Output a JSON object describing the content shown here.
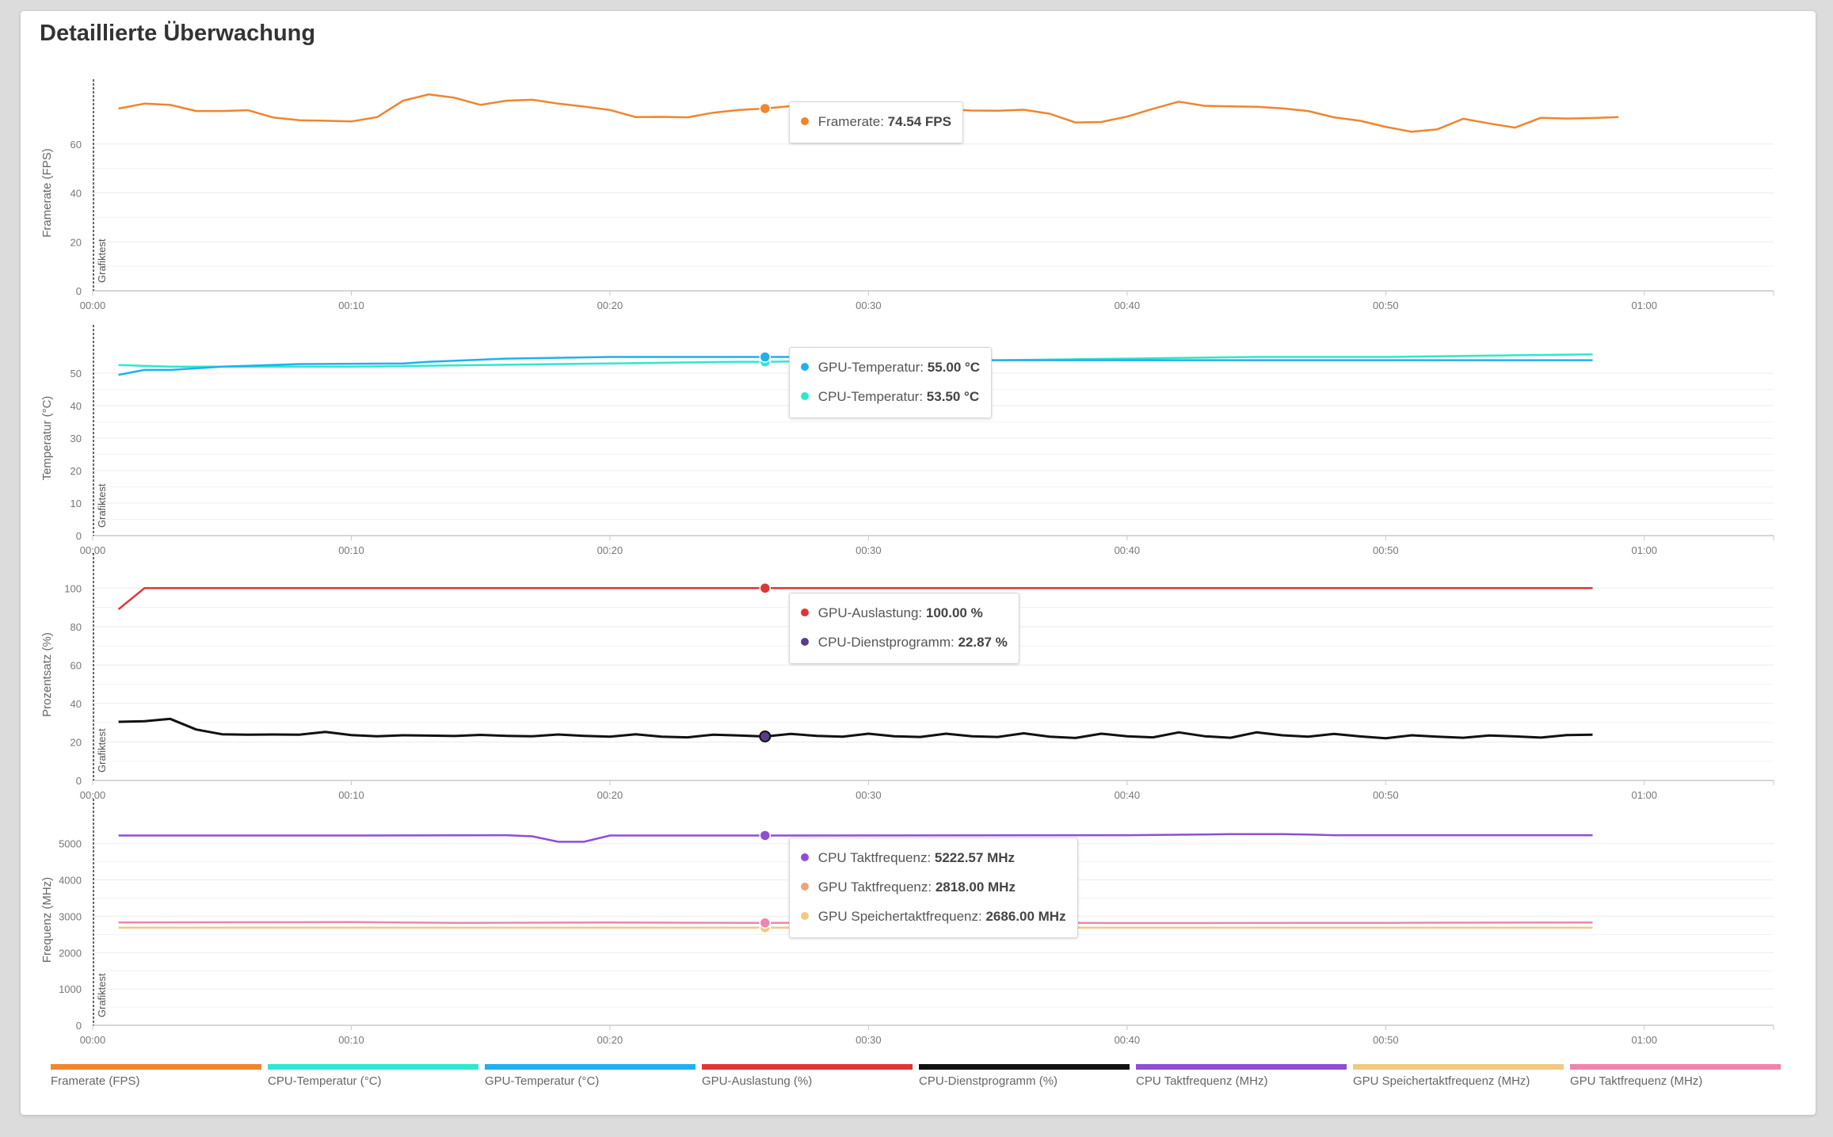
{
  "title": "Detaillierte Überwachung",
  "chart_data": [
    {
      "type": "line",
      "ylabel": "Framerate (FPS)",
      "marker_label": "Grafiktest",
      "ylim": [
        0,
        80
      ],
      "yticks": [
        0,
        20,
        40,
        60
      ],
      "xlim": [
        0,
        65
      ],
      "x_tick_labels": [
        "00:00",
        "00:10",
        "00:20",
        "00:30",
        "00:40",
        "00:50",
        "01:00"
      ],
      "series": [
        {
          "name": "Framerate (FPS)",
          "color": "#f0852d",
          "x": [
            1,
            2,
            3,
            4,
            5,
            6,
            7,
            8,
            9,
            10,
            11,
            12,
            13,
            14,
            15,
            16,
            17,
            18,
            19,
            20,
            21,
            22,
            23,
            24,
            25,
            26,
            27,
            28,
            29,
            30,
            31,
            32,
            33,
            34,
            35,
            36,
            37,
            38,
            39,
            40,
            41,
            42,
            43,
            44,
            45,
            46,
            47,
            48,
            49,
            50,
            51,
            52,
            53,
            54,
            55,
            56,
            57,
            58,
            59
          ],
          "values": [
            74.5,
            76.5,
            76,
            73.5,
            73.5,
            73.8,
            70.8,
            69.7,
            69.5,
            69.2,
            71,
            77.7,
            80.3,
            78.9,
            76,
            77.7,
            78.1,
            76.5,
            75.3,
            73.9,
            71,
            71.1,
            70.9,
            72.8,
            73.9,
            74.5,
            75.5,
            75.6,
            75,
            74.5,
            74.2,
            74.2,
            74.2,
            73.7,
            73.6,
            74,
            72.4,
            68.8,
            69,
            71.2,
            74.4,
            77.3,
            75.6,
            75.4,
            75.2,
            74.6,
            73.5,
            70.9,
            69.5,
            67,
            65,
            66,
            70.3,
            68.4,
            66.7,
            70.7,
            70.4,
            70.6,
            71
          ]
        }
      ],
      "tooltip": {
        "x": 26,
        "rows": [
          {
            "color": "#f0852d",
            "label": "Framerate:",
            "value": "74.54 FPS"
          }
        ]
      }
    },
    {
      "type": "line",
      "ylabel": "Temperatur (°C)",
      "marker_label": "Grafiktest",
      "ylim": [
        0,
        60
      ],
      "yticks": [
        0,
        10,
        20,
        30,
        40,
        50
      ],
      "xlim": [
        0,
        65
      ],
      "x_tick_labels": [
        "00:00",
        "00:10",
        "00:20",
        "00:30",
        "00:40",
        "00:50",
        "01:00"
      ],
      "series": [
        {
          "name": "CPU-Temperatur (°C)",
          "color": "#2ee8cd",
          "x": [
            1,
            3,
            6,
            10,
            15,
            20,
            25,
            26,
            30,
            35,
            40,
            45,
            50,
            55,
            58
          ],
          "values": [
            52.5,
            52,
            52,
            52,
            52.5,
            53,
            53.5,
            53.5,
            54,
            54,
            54.5,
            55,
            55,
            55.5,
            55.8
          ]
        },
        {
          "name": "GPU-Temperatur (°C)",
          "color": "#1fb1ef",
          "x": [
            1,
            2,
            3,
            5,
            8,
            12,
            13,
            16,
            20,
            26,
            30,
            33,
            34,
            40,
            50,
            58
          ],
          "values": [
            49.5,
            51,
            51,
            52,
            52.8,
            53,
            53.5,
            54.5,
            55,
            55,
            55,
            55,
            54,
            54,
            54,
            54
          ]
        }
      ],
      "tooltip": {
        "x": 26,
        "rows": [
          {
            "color": "#1fb1ef",
            "label": "GPU-Temperatur:",
            "value": "55.00 °C"
          },
          {
            "color": "#2ee8cd",
            "label": "CPU-Temperatur:",
            "value": "53.50 °C"
          }
        ]
      }
    },
    {
      "type": "line",
      "ylabel": "Prozentsatz (%)",
      "marker_label": "Grafiktest",
      "ylim": [
        0,
        110
      ],
      "yticks": [
        0,
        20,
        40,
        60,
        80,
        100
      ],
      "xlim": [
        0,
        65
      ],
      "x_tick_labels": [
        "00:00",
        "00:10",
        "00:20",
        "00:30",
        "00:40",
        "00:50",
        "01:00"
      ],
      "series": [
        {
          "name": "GPU-Auslastung (%)",
          "color": "#e03636",
          "x": [
            1,
            2,
            26,
            58
          ],
          "values": [
            89,
            100,
            100,
            100
          ]
        },
        {
          "name": "CPU-Dienstprogramm (%)",
          "color": "#111111",
          "x": [
            1,
            2,
            3,
            4,
            5,
            6,
            7,
            8,
            9,
            10,
            11,
            12,
            13,
            14,
            15,
            16,
            17,
            18,
            19,
            20,
            21,
            22,
            23,
            24,
            25,
            26,
            27,
            28,
            29,
            30,
            31,
            32,
            33,
            34,
            35,
            36,
            37,
            38,
            39,
            40,
            41,
            42,
            43,
            44,
            45,
            46,
            47,
            48,
            49,
            50,
            51,
            52,
            53,
            54,
            55,
            56,
            57,
            58
          ],
          "values": [
            30.5,
            30.8,
            32,
            26.5,
            24,
            23.8,
            23.9,
            23.8,
            25.2,
            23.6,
            23,
            23.5,
            23.3,
            23.1,
            23.7,
            23.2,
            23,
            23.9,
            23.2,
            22.8,
            24,
            22.8,
            22.4,
            23.8,
            23.4,
            22.87,
            24.2,
            23.2,
            22.8,
            24.3,
            23,
            22.6,
            24.3,
            23,
            22.6,
            24.5,
            22.8,
            22.1,
            24.3,
            23,
            22.4,
            25,
            23,
            22.2,
            25,
            23.5,
            22.8,
            24.2,
            22.9,
            21.9,
            23.5,
            22.8,
            22.2,
            23.4,
            22.9,
            22.3,
            23.6,
            23.8
          ]
        }
      ],
      "tooltip": {
        "x": 26,
        "rows": [
          {
            "color": "#e03636",
            "label": "GPU-Auslastung:",
            "value": "100.00 %"
          },
          {
            "color": "#5a3d8a",
            "label": "CPU-Dienstprogramm:",
            "value": "22.87 %"
          }
        ]
      }
    },
    {
      "type": "line",
      "ylabel": "Frequenz (MHz)",
      "marker_label": "Grafiktest",
      "ylim": [
        0,
        5800
      ],
      "yticks": [
        0,
        1000,
        2000,
        3000,
        4000,
        5000
      ],
      "xlim": [
        0,
        65
      ],
      "x_tick_labels": [
        "00:00",
        "00:10",
        "00:20",
        "00:30",
        "00:40",
        "00:50",
        "01:00"
      ],
      "series": [
        {
          "name": "CPU Taktfrequenz (MHz)",
          "color": "#8e4fd6",
          "x": [
            1,
            10,
            16,
            17,
            18,
            19,
            20,
            26,
            40,
            44,
            46,
            47,
            48,
            58
          ],
          "values": [
            5222,
            5222,
            5230,
            5200,
            5050,
            5050,
            5222,
            5222.57,
            5230,
            5260,
            5260,
            5250,
            5230,
            5230
          ]
        },
        {
          "name": "GPU Speichertaktfrequenz (MHz)",
          "color": "#f2c883",
          "x": [
            1,
            26,
            58
          ],
          "values": [
            2686,
            2686,
            2686
          ]
        },
        {
          "name": "GPU Taktfrequenz (MHz)",
          "color": "#ef85ad",
          "x": [
            1,
            10,
            14,
            20,
            26,
            30,
            40,
            50,
            58
          ],
          "values": [
            2830,
            2840,
            2818,
            2830,
            2818,
            2825,
            2815,
            2820,
            2830
          ]
        }
      ],
      "tooltip": {
        "x": 26,
        "rows": [
          {
            "color": "#8e4fd6",
            "label": "CPU Taktfrequenz:",
            "value": "5222.57 MHz"
          },
          {
            "color": "#f0a27a",
            "label": "GPU Taktfrequenz:",
            "value": "2818.00 MHz"
          },
          {
            "color": "#f2c883",
            "label": "GPU Speichertaktfrequenz:",
            "value": "2686.00 MHz"
          }
        ]
      }
    }
  ],
  "legend": [
    {
      "label": "Framerate (FPS)",
      "color": "#f0852d"
    },
    {
      "label": "CPU-Temperatur (°C)",
      "color": "#2ee8cd"
    },
    {
      "label": "GPU-Temperatur (°C)",
      "color": "#1fb1ef"
    },
    {
      "label": "GPU-Auslastung (%)",
      "color": "#e03636"
    },
    {
      "label": "CPU-Dienstprogramm (%)",
      "color": "#111111"
    },
    {
      "label": "CPU Taktfrequenz (MHz)",
      "color": "#8e4fd6"
    },
    {
      "label": "GPU Speichertaktfrequenz (MHz)",
      "color": "#f2c883"
    },
    {
      "label": "GPU Taktfrequenz (MHz)",
      "color": "#ef85ad"
    }
  ]
}
